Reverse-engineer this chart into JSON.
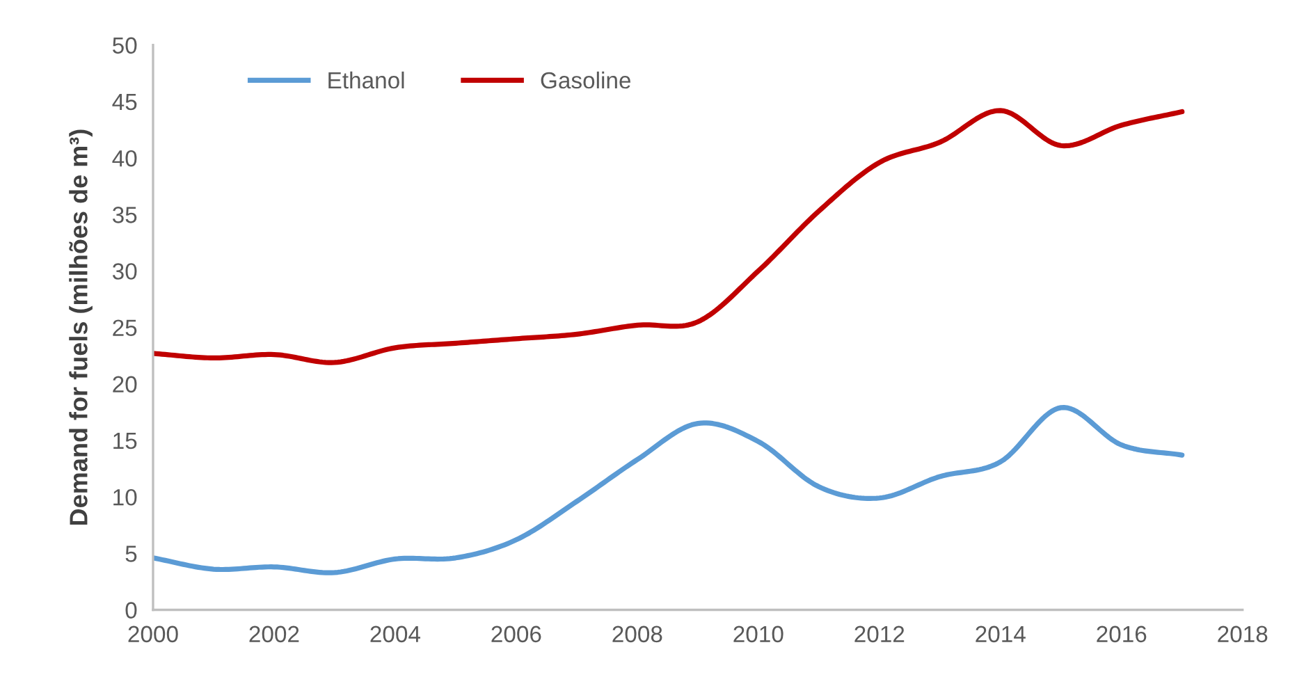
{
  "chart_data": {
    "type": "line",
    "ylabel": "Demand for fuels (milhões de m³)",
    "x": [
      2000,
      2001,
      2002,
      2003,
      2004,
      2005,
      2006,
      2007,
      2008,
      2009,
      2010,
      2011,
      2012,
      2013,
      2014,
      2015,
      2016,
      2017
    ],
    "series": [
      {
        "name": "Ethanol",
        "color": "#5b9bd5",
        "values": [
          4.6,
          3.6,
          3.8,
          3.3,
          4.5,
          4.6,
          6.2,
          9.6,
          13.3,
          16.5,
          14.9,
          10.9,
          9.9,
          11.8,
          13.1,
          17.9,
          14.6,
          13.7
        ]
      },
      {
        "name": "Gasoline",
        "color": "#c00000",
        "values": [
          22.7,
          22.3,
          22.6,
          21.9,
          23.2,
          23.6,
          24.0,
          24.4,
          25.2,
          25.5,
          30.0,
          35.3,
          39.6,
          41.4,
          44.2,
          41.1,
          42.9,
          44.1
        ]
      }
    ],
    "xlim": [
      2000,
      2018
    ],
    "xticks": [
      2000,
      2002,
      2004,
      2006,
      2008,
      2010,
      2012,
      2014,
      2016,
      2018
    ],
    "ylim": [
      0,
      50
    ],
    "yticks": [
      0,
      5,
      10,
      15,
      20,
      25,
      30,
      35,
      40,
      45,
      50
    ],
    "grid": false,
    "legend": "top left"
  }
}
